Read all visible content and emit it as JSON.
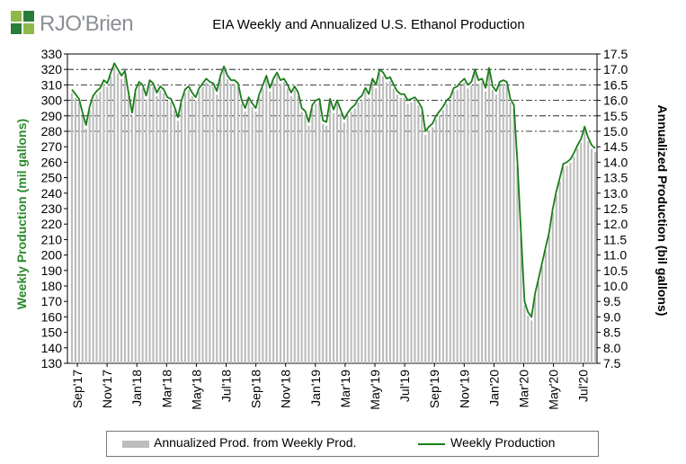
{
  "logo": {
    "text": "RJO'Brien",
    "colors": [
      "#8fb84a",
      "#2a7c3a",
      "#9aa0a6"
    ]
  },
  "chart_data": {
    "type": "bar+line",
    "title": "EIA Weekly and Annualized U.S. Ethanol Production",
    "ylabel_left": "Weekly Production (mil gallons)",
    "ylabel_right": "Annualized Production (bil gallons)",
    "ylim_left": [
      130,
      330
    ],
    "ylim_right": [
      7.5,
      17.5
    ],
    "yticks_left": [
      "330",
      "320",
      "310",
      "300",
      "290",
      "280",
      "270",
      "260",
      "250",
      "240",
      "230",
      "220",
      "210",
      "200",
      "190",
      "180",
      "170",
      "160",
      "150",
      "140",
      "130"
    ],
    "yticks_right": [
      "17.5",
      "17.0",
      "16.5",
      "16.0",
      "15.5",
      "15.0",
      "14.5",
      "14.0",
      "13.5",
      "13.0",
      "12.5",
      "12.0",
      "11.5",
      "11.0",
      "10.5",
      "10.0",
      "9.5",
      "9.0",
      "8.5",
      "8.0",
      "7.5"
    ],
    "xticks": [
      "Sep'17",
      "Nov'17",
      "Jan'18",
      "Mar'18",
      "May'18",
      "Jul'18",
      "Sep'18",
      "Nov'18",
      "Jan'19",
      "Mar'19",
      "May'19",
      "Jul'19",
      "Sep'19",
      "Nov'19",
      "Jan'20",
      "Mar'20",
      "May'20",
      "Jul'20"
    ],
    "grid_left_dashed": [
      320,
      310,
      300,
      290,
      280
    ],
    "legend_position": "bottom",
    "colors": {
      "bars": "#bdbdbd",
      "line": "#1a7d1a",
      "left_axis": "#2a8a2a",
      "grid": "#000000"
    },
    "series": [
      {
        "name": "Annualized Prod. from Weekly Prod.",
        "kind": "bar",
        "axis": "left",
        "values": [
          307,
          304,
          301,
          292,
          284,
          296,
          303,
          306,
          308,
          313,
          311,
          318,
          324,
          320,
          316,
          319,
          305,
          292,
          307,
          312,
          310,
          303,
          313,
          311,
          305,
          309,
          307,
          302,
          301,
          296,
          289,
          300,
          307,
          309,
          305,
          302,
          308,
          311,
          314,
          312,
          311,
          306,
          316,
          322,
          316,
          313,
          313,
          311,
          300,
          295,
          302,
          298,
          295,
          304,
          310,
          316,
          308,
          314,
          318,
          313,
          314,
          310,
          305,
          309,
          305,
          295,
          293,
          286,
          297,
          300,
          301,
          287,
          286,
          301,
          294,
          300,
          294,
          288,
          292,
          295,
          297,
          301,
          303,
          308,
          304,
          314,
          310,
          320,
          318,
          314,
          315,
          310,
          306,
          304,
          304,
          300,
          301,
          302,
          299,
          295,
          280,
          283,
          285,
          290,
          293,
          296,
          300,
          302,
          308,
          309,
          312,
          314,
          310,
          312,
          320,
          313,
          314,
          308,
          321,
          309,
          306,
          312,
          313,
          312,
          301,
          297,
          260,
          215,
          170,
          163,
          160,
          175,
          185,
          195,
          205,
          215,
          230,
          241,
          250,
          259,
          260,
          262,
          266,
          271,
          275,
          283,
          276,
          271,
          269
        ]
      },
      {
        "name": "Weekly Production",
        "kind": "line",
        "axis": "left",
        "values": [
          307,
          304,
          301,
          292,
          284,
          296,
          303,
          306,
          308,
          313,
          311,
          318,
          324,
          320,
          316,
          319,
          305,
          292,
          307,
          312,
          310,
          303,
          313,
          311,
          305,
          309,
          307,
          302,
          301,
          296,
          289,
          300,
          307,
          309,
          305,
          302,
          308,
          311,
          314,
          312,
          311,
          306,
          316,
          322,
          316,
          313,
          313,
          311,
          300,
          295,
          302,
          298,
          295,
          304,
          310,
          316,
          308,
          314,
          318,
          313,
          314,
          310,
          305,
          309,
          305,
          295,
          293,
          286,
          297,
          300,
          301,
          287,
          286,
          301,
          294,
          300,
          294,
          288,
          292,
          295,
          297,
          301,
          303,
          308,
          304,
          314,
          310,
          320,
          318,
          314,
          315,
          310,
          306,
          304,
          304,
          300,
          301,
          302,
          299,
          295,
          280,
          283,
          285,
          290,
          293,
          296,
          300,
          302,
          308,
          309,
          312,
          314,
          310,
          312,
          320,
          313,
          314,
          308,
          321,
          309,
          306,
          312,
          313,
          312,
          301,
          297,
          260,
          215,
          170,
          163,
          160,
          175,
          185,
          195,
          205,
          215,
          230,
          241,
          250,
          259,
          260,
          262,
          266,
          271,
          275,
          283,
          276,
          271,
          269
        ]
      }
    ]
  }
}
